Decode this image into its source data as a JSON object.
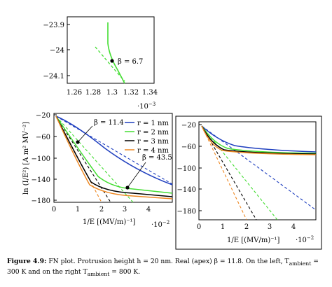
{
  "caption": {
    "label": "Figure 4.9:",
    "line1": "FN plot. Protrusion height h = 20 nm. Real (apex) β = 11.8. On the left, T",
    "sub1": "ambient",
    "after1": " = 300 K",
    "line2": "and on the right T",
    "sub2": "ambient",
    "after2": " = 800 K."
  },
  "colors": {
    "r1": "#1f3fbf",
    "r2": "#44dd33",
    "r3": "#000000",
    "r4": "#ee8822"
  },
  "legend": [
    "r = 1 nm",
    "r = 2 nm",
    "r = 3 nm",
    "r = 4 nm"
  ],
  "inset": {
    "yticks": [
      "−23.9",
      "−24",
      "−24.1"
    ],
    "xticks": [
      "1.26",
      "1.28",
      "1.3",
      "1.32",
      "1.34"
    ],
    "xexp": "·10",
    "xexp_sup": "−3",
    "annotation": "β = 6.7"
  },
  "left": {
    "ylabel": "ln (I/E²) [A m² MV⁻²]",
    "xlabel": "1/E [(MV/m)⁻¹]",
    "xexp": "·10",
    "xexp_sup": "−2",
    "yticks": [
      "−20",
      "−60",
      "−100",
      "−140",
      "−180"
    ],
    "xticks": [
      "0",
      "1",
      "2",
      "3",
      "4"
    ],
    "ann1": "β = 11.4",
    "ann2": "β = 43.5"
  },
  "right": {
    "xlabel": "1/E [(MV/m)⁻¹]",
    "xexp": "·10",
    "xexp_sup": "−2",
    "yticks": [
      "−20",
      "−60",
      "−100",
      "−140",
      "−180"
    ],
    "xticks": [
      "0",
      "1",
      "2",
      "3",
      "4"
    ]
  }
}
